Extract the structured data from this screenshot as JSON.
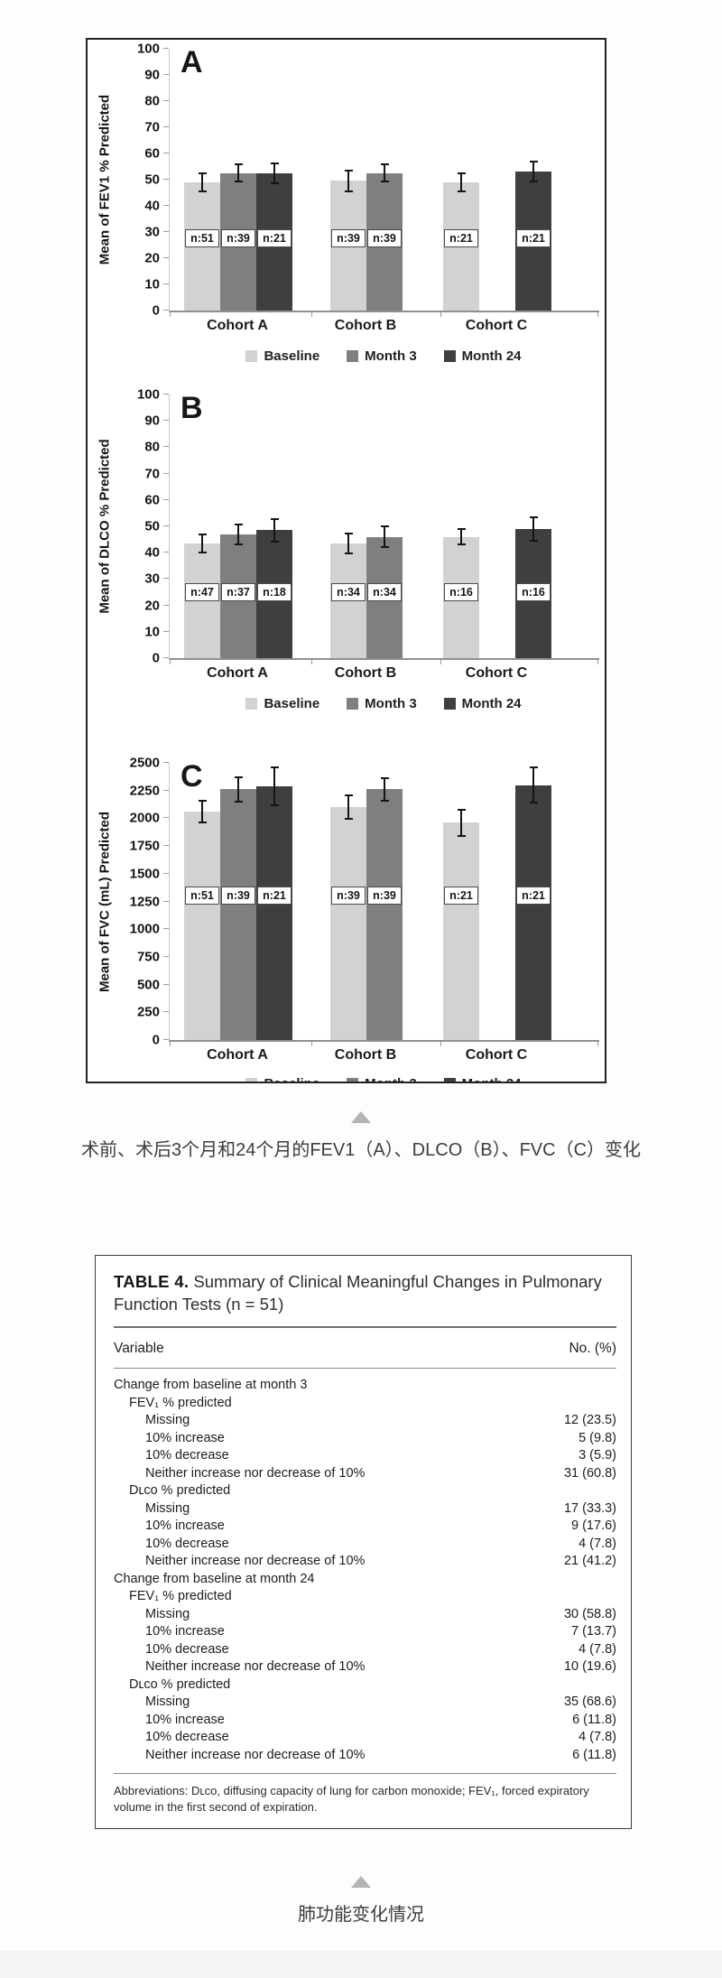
{
  "page": {
    "caption1": "术前、术后3个月和24个月的FEV1（A）、DLCO（B）、FVC（C）变化",
    "caption2": "肺功能变化情况"
  },
  "figure": {
    "series_colors": [
      "#d2d2d2",
      "#7f7f7f",
      "#3f3f3f"
    ],
    "legend_labels": [
      "Baseline",
      "Month 3",
      "Month 24"
    ]
  },
  "chart_data": [
    {
      "type": "bar",
      "panel": "A",
      "ylabel": "Mean of FEV1 % Predicted",
      "ylim": [
        0,
        100
      ],
      "ystep": 10,
      "categories": [
        "Cohort A",
        "Cohort B",
        "Cohort C"
      ],
      "series_names": [
        "Baseline",
        "Month 3",
        "Month 24"
      ],
      "n_label_y": 27.5,
      "groups": [
        {
          "category": "Cohort A",
          "bars": [
            {
              "series": "Baseline",
              "value": 49,
              "err": 3,
              "n": "n:51"
            },
            {
              "series": "Month 3",
              "value": 52.5,
              "err": 3,
              "n": "n:39"
            },
            {
              "series": "Month 24",
              "value": 52.5,
              "err": 3.5,
              "n": "n:21"
            }
          ]
        },
        {
          "category": "Cohort B",
          "bars": [
            {
              "series": "Baseline",
              "value": 49.5,
              "err": 3.5,
              "n": "n:39"
            },
            {
              "series": "Month 3",
              "value": 52.5,
              "err": 3,
              "n": "n:39"
            }
          ]
        },
        {
          "category": "Cohort C",
          "bars": [
            {
              "series": "Baseline",
              "value": 49,
              "err": 3,
              "n": "n:21"
            },
            {
              "series": "Month 24",
              "value": 53,
              "err": 3.5,
              "n": "n:21"
            }
          ]
        }
      ]
    },
    {
      "type": "bar",
      "panel": "B",
      "ylabel": "Mean of DLCO % Predicted",
      "ylim": [
        0,
        100
      ],
      "ystep": 10,
      "categories": [
        "Cohort A",
        "Cohort B",
        "Cohort C"
      ],
      "series_names": [
        "Baseline",
        "Month 3",
        "Month 24"
      ],
      "n_label_y": 25,
      "groups": [
        {
          "category": "Cohort A",
          "bars": [
            {
              "series": "Baseline",
              "value": 43.5,
              "err": 3,
              "n": "n:47"
            },
            {
              "series": "Month 3",
              "value": 47,
              "err": 3.5,
              "n": "n:37"
            },
            {
              "series": "Month 24",
              "value": 48.5,
              "err": 4,
              "n": "n:18"
            }
          ]
        },
        {
          "category": "Cohort B",
          "bars": [
            {
              "series": "Baseline",
              "value": 43.5,
              "err": 3.5,
              "n": "n:34"
            },
            {
              "series": "Month 3",
              "value": 46,
              "err": 3.5,
              "n": "n:34"
            }
          ]
        },
        {
          "category": "Cohort C",
          "bars": [
            {
              "series": "Baseline",
              "value": 46,
              "err": 2.5,
              "n": "n:16"
            },
            {
              "series": "Month 24",
              "value": 49,
              "err": 4,
              "n": "n:16"
            }
          ]
        }
      ]
    },
    {
      "type": "bar",
      "panel": "C",
      "ylabel": "Mean of FVC (mL) Predicted",
      "ylim": [
        0,
        2500
      ],
      "ystep": 250,
      "categories": [
        "Cohort A",
        "Cohort B",
        "Cohort C"
      ],
      "series_names": [
        "Baseline",
        "Month 3",
        "Month 24"
      ],
      "n_label_y": 1300,
      "groups": [
        {
          "category": "Cohort A",
          "bars": [
            {
              "series": "Baseline",
              "value": 2060,
              "err": 90,
              "n": "n:51"
            },
            {
              "series": "Month 3",
              "value": 2260,
              "err": 100,
              "n": "n:39"
            },
            {
              "series": "Month 24",
              "value": 2290,
              "err": 165,
              "n": "n:21"
            }
          ]
        },
        {
          "category": "Cohort B",
          "bars": [
            {
              "series": "Baseline",
              "value": 2100,
              "err": 100,
              "n": "n:39"
            },
            {
              "series": "Month 3",
              "value": 2260,
              "err": 95,
              "n": "n:39"
            }
          ]
        },
        {
          "category": "Cohort C",
          "bars": [
            {
              "series": "Baseline",
              "value": 1960,
              "err": 110,
              "n": "n:21"
            },
            {
              "series": "Month 24",
              "value": 2300,
              "err": 150,
              "n": "n:21"
            }
          ]
        }
      ]
    }
  ],
  "table": {
    "title_bold": "TABLE 4.",
    "title_rest": " Summary of Clinical Meaningful Changes in Pulmonary Function Tests (n = 51)",
    "columns": [
      "Variable",
      "No. (%)"
    ],
    "rows": [
      {
        "label": "Change from baseline at month 3",
        "value": "",
        "indent": 0
      },
      {
        "label": "FEV₁ % predicted",
        "value": "",
        "indent": 1
      },
      {
        "label": "Missing",
        "value": "12 (23.5)",
        "indent": 2
      },
      {
        "label": "10% increase",
        "value": "5 (9.8)",
        "indent": 2
      },
      {
        "label": "10% decrease",
        "value": "3 (5.9)",
        "indent": 2
      },
      {
        "label": "Neither increase nor decrease of 10%",
        "value": "31 (60.8)",
        "indent": 2
      },
      {
        "label": "Dʟᴄᴏ % predicted",
        "value": "",
        "indent": 1
      },
      {
        "label": "Missing",
        "value": "17 (33.3)",
        "indent": 2
      },
      {
        "label": "10% increase",
        "value": "9 (17.6)",
        "indent": 2
      },
      {
        "label": "10% decrease",
        "value": "4 (7.8)",
        "indent": 2
      },
      {
        "label": "Neither increase nor decrease of 10%",
        "value": "21 (41.2)",
        "indent": 2
      },
      {
        "label": "Change from baseline at month 24",
        "value": "",
        "indent": 0
      },
      {
        "label": "FEV₁ % predicted",
        "value": "",
        "indent": 1
      },
      {
        "label": "Missing",
        "value": "30 (58.8)",
        "indent": 2
      },
      {
        "label": "10% increase",
        "value": "7 (13.7)",
        "indent": 2
      },
      {
        "label": "10% decrease",
        "value": "4 (7.8)",
        "indent": 2
      },
      {
        "label": "Neither increase nor decrease of 10%",
        "value": "10 (19.6)",
        "indent": 2
      },
      {
        "label": "Dʟᴄᴏ % predicted",
        "value": "",
        "indent": 1
      },
      {
        "label": "Missing",
        "value": "35 (68.6)",
        "indent": 2
      },
      {
        "label": "10% increase",
        "value": "6 (11.8)",
        "indent": 2
      },
      {
        "label": "10% decrease",
        "value": "4 (7.8)",
        "indent": 2
      },
      {
        "label": "Neither increase nor decrease of 10%",
        "value": "6 (11.8)",
        "indent": 2
      }
    ],
    "footnote": "Abbreviations: Dʟᴄᴏ, diffusing capacity of lung for carbon monoxide; FEV₁, forced expiratory volume in the first second of expiration."
  }
}
